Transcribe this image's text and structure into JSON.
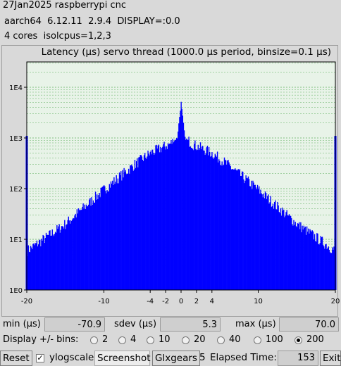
{
  "header": {
    "line1": "27Jan2025 raspberrypi cnc",
    "line2": "aarch64  6.12.11  2.9.4  DISPLAY=:0.0",
    "line3": "4 cores  isolcpus=1,2,3"
  },
  "plot_title": "Latency (µs) servo thread (1000.0 µs period, binsize=0.1 µs)",
  "chart_data": {
    "type": "bar",
    "title": "Latency (µs) servo thread (1000.0 µs period, binsize=0.1 µs)",
    "yscale": "log",
    "xlim": [
      -20,
      20
    ],
    "ylim_exp": [
      0,
      4.5
    ],
    "x_ticks": [
      "-20",
      "-10",
      "-4",
      "-2",
      "0",
      "2",
      "4",
      "10",
      "20"
    ],
    "x_tick_values": [
      -20,
      -10,
      -4,
      -2,
      0,
      2,
      4,
      10,
      20
    ],
    "y_ticks": [
      "1E0",
      "1E1",
      "1E2",
      "1E3",
      "1E4"
    ],
    "bar_color": "#0000ff",
    "grid_color": "#008000",
    "plot_bg": "#e8f3e8",
    "edge_marker_color": "#ff0000",
    "profile": [
      {
        "x": 0,
        "count": 5000
      },
      {
        "x": 0.5,
        "count": 1000
      },
      {
        "x": 1.5,
        "count": 750
      },
      {
        "x": 4,
        "count": 500
      },
      {
        "x": 6,
        "count": 300
      },
      {
        "x": 10,
        "count": 95
      },
      {
        "x": 15,
        "count": 20
      },
      {
        "x": 19.9,
        "count": 6
      }
    ],
    "edge_bins": [
      {
        "x": -20,
        "count": 1100
      },
      {
        "x": 20,
        "count": 1100
      }
    ]
  },
  "stats": {
    "min_label": "min (µs)",
    "min_value": "-70.9",
    "sdev_label": "sdev (µs)",
    "sdev_value": "5.3",
    "max_label": "max (µs)",
    "max_value": "70.0"
  },
  "bins": {
    "label": "Display +/- bins:",
    "options": [
      "2",
      "4",
      "10",
      "20",
      "40",
      "100",
      "200"
    ],
    "selected": "200"
  },
  "bottom": {
    "reset": "Reset",
    "ylogscale": "ylogscale",
    "ylogscale_checked": true,
    "check_mark": "✓",
    "screenshot": "Screenshot",
    "glxgears": "Glxgears",
    "glx_count": "5",
    "elapsed_label": "Elapsed Time:",
    "elapsed_value": "153",
    "exit": "Exit"
  }
}
